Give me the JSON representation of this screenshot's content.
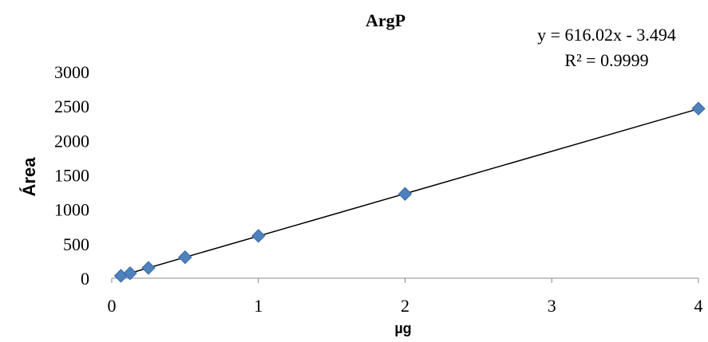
{
  "chart_data": {
    "type": "scatter",
    "title": "ArgP",
    "xlabel": "µg",
    "ylabel": "Área",
    "x_ticks": [
      0,
      1,
      2,
      3,
      4
    ],
    "y_ticks": [
      0,
      500,
      1000,
      1500,
      2000,
      2500,
      3000
    ],
    "x_tick_labels": [
      "0",
      "1",
      "2",
      "3",
      "4"
    ],
    "y_tick_labels": [
      "0",
      "500",
      "1000",
      "1500",
      "2000",
      "2500",
      "3000"
    ],
    "xlim": [
      0,
      4
    ],
    "ylim": [
      0,
      3000
    ],
    "grid": false,
    "series": [
      {
        "x": [
          0.0625,
          0.125,
          0.25,
          0.5,
          1,
          2,
          4
        ],
        "y": [
          35,
          72,
          150,
          305,
          615,
          1225,
          2465
        ],
        "color": "#4f81bd",
        "marker": "diamond"
      }
    ],
    "trendline": {
      "slope": 616.02,
      "intercept": -3.494,
      "x_range": [
        0.0625,
        4
      ],
      "color": "#000000",
      "equation": "y = 616.02x - 3.494",
      "r_squared": "R² = 0.9999"
    }
  }
}
